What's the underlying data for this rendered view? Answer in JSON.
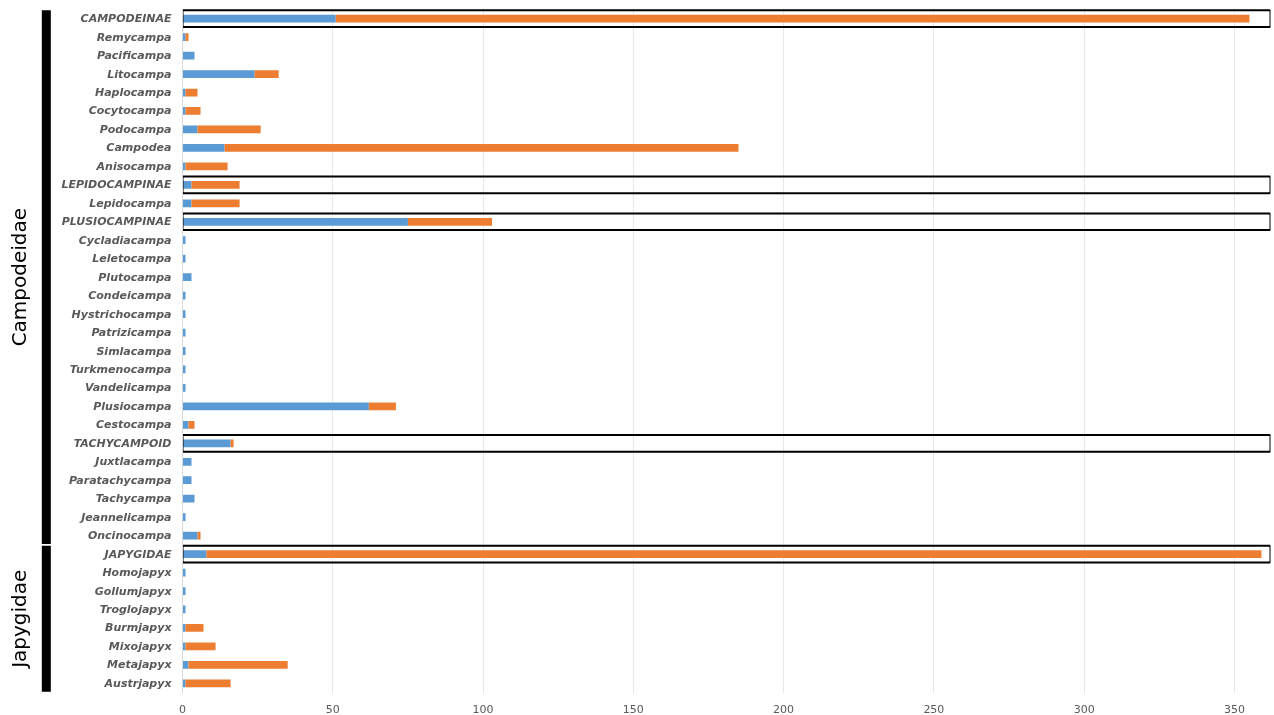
{
  "chart_data": {
    "type": "bar",
    "orientation": "horizontal",
    "stacked": true,
    "categories": [
      "CAMPODEINAE",
      "Remycampa",
      "Pacificampa",
      "Litocampa",
      "Haplocampa",
      "Cocytocampa",
      "Podocampa",
      "Campodea",
      "Anisocampa",
      "LEPIDOCAMPINAE",
      "Lepidocampa",
      "PLUSIOCAMPINAE",
      "Cycladiacampa",
      "Leletocampa",
      "Plutocampa",
      "Condeicampa",
      "Hystrichocampa",
      "Patrizicampa",
      "Simlacampa",
      "Turkmenocampa",
      "Vandelicampa",
      "Plusiocampa",
      "Cestocampa",
      "TACHYCAMPOID",
      "Juxtlacampa",
      "Paratachycampa",
      "Tachycampa",
      "Jeannelicampa",
      "Oncinocampa",
      "JAPYGIDAE",
      "Homojapyx",
      "Gollumjapyx",
      "Troglojapyx",
      "Burmjapyx",
      "Mixojapyx",
      "Metajapyx",
      "Austrjapyx"
    ],
    "series": [
      {
        "color": "#5b9bd5",
        "values": [
          51,
          1,
          4,
          24,
          1,
          1,
          5,
          14,
          1,
          3,
          3,
          75,
          1,
          1,
          3,
          1,
          1,
          1,
          1,
          1,
          1,
          62,
          2,
          16,
          3,
          3,
          4,
          1,
          5,
          8,
          1,
          1,
          1,
          1,
          1,
          2,
          1
        ]
      },
      {
        "color": "#ed7d31",
        "values": [
          304,
          1,
          null,
          8,
          4,
          5,
          21,
          171,
          14,
          16,
          16,
          28,
          null,
          null,
          null,
          null,
          null,
          null,
          null,
          null,
          null,
          9,
          2,
          1,
          null,
          null,
          null,
          null,
          1,
          351,
          null,
          null,
          null,
          6,
          10,
          33,
          15
        ]
      }
    ],
    "xlim": [
      0,
      362
    ],
    "xticks": [
      0,
      50,
      100,
      150,
      200,
      250,
      300,
      350
    ],
    "grid": "x",
    "annotations": [
      "Campodeidae",
      "Japygidae"
    ]
  }
}
